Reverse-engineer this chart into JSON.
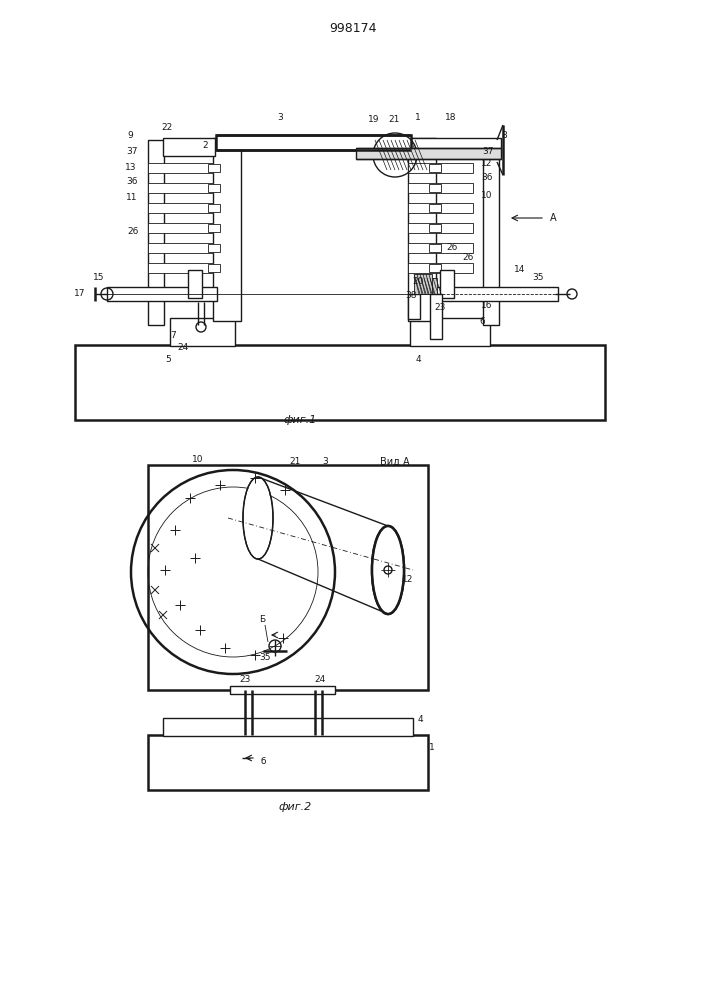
{
  "title": "998174",
  "fig1_caption": "фиг.1",
  "fig2_caption": "фиг.2",
  "view_label": "Вид A",
  "background": "#ffffff",
  "line_color": "#1a1a1a",
  "lw": 1.0,
  "lw_thick": 1.8,
  "lw_thin": 0.6
}
